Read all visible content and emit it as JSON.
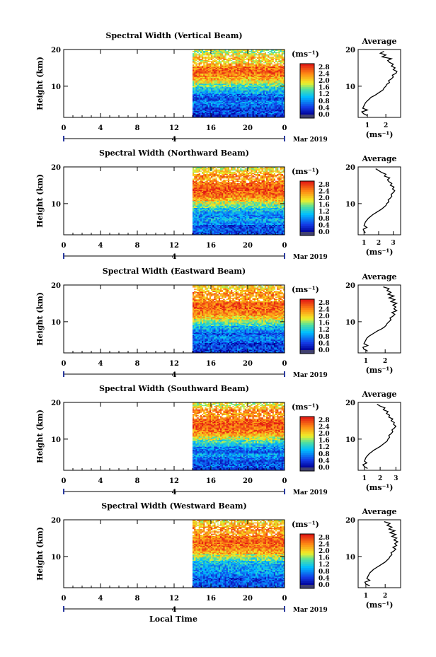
{
  "figure": {
    "xlabel": "Local Time",
    "date_label": "Mar 2019",
    "day_marker": "4"
  },
  "chart_data": [
    {
      "type": "heatmap",
      "title": "Spectral Width (Vertical Beam)",
      "xlabel": "",
      "ylabel": "Height (km)",
      "xlim": [
        0,
        24
      ],
      "ylim": [
        1.5,
        20
      ],
      "xticks": [
        "0",
        "4",
        "8",
        "12",
        "16",
        "20",
        "0"
      ],
      "yticks": [
        "10",
        "20"
      ],
      "data_start_hour": 14,
      "colorbar": {
        "unit": "(ms⁻¹)",
        "levels": [
          "0.0",
          "0.4",
          "0.8",
          "1.2",
          "1.6",
          "2.0",
          "2.4",
          "2.8"
        ],
        "vmin": 0,
        "vmax": 3.0
      },
      "profile_rows": [
        0.3,
        0.5,
        0.4,
        0.6,
        0.8,
        0.5,
        0.7,
        1.0,
        1.2,
        1.5,
        1.9,
        2.2,
        2.4,
        2.6,
        2.5,
        2.3,
        2.0,
        2.2,
        1.9,
        1.7
      ],
      "seed": 11,
      "average": {
        "title": "Average",
        "xlabel": "(ms⁻¹)",
        "xticks": [
          1,
          2
        ],
        "xlim": [
          0.5,
          2.8
        ],
        "height": [
          2,
          2.5,
          3,
          3.5,
          4,
          4.5,
          5,
          5.5,
          6,
          6.5,
          7,
          7.5,
          8,
          8.5,
          9,
          9.5,
          10,
          10.5,
          11,
          11.5,
          12,
          12.5,
          13,
          13.5,
          14,
          14.5,
          15,
          15.5,
          16,
          16.5,
          17,
          17.5,
          18,
          18.5,
          19,
          19.5
        ],
        "value": [
          1.0,
          0.8,
          0.7,
          1.0,
          0.75,
          0.8,
          0.85,
          0.9,
          1.0,
          1.1,
          1.2,
          1.4,
          1.55,
          1.7,
          1.85,
          1.9,
          2.0,
          2.05,
          2.2,
          2.15,
          2.3,
          2.4,
          2.35,
          2.55,
          2.6,
          2.4,
          2.5,
          2.3,
          2.4,
          2.2,
          2.1,
          2.3,
          1.8,
          2.0,
          1.7,
          1.9
        ]
      }
    },
    {
      "type": "heatmap",
      "title": "Spectral Width (Northward Beam)",
      "xlabel": "",
      "ylabel": "Height (km)",
      "xlim": [
        0,
        24
      ],
      "ylim": [
        1.5,
        20
      ],
      "xticks": [
        "0",
        "4",
        "8",
        "12",
        "16",
        "20",
        "0"
      ],
      "yticks": [
        "10",
        "20"
      ],
      "data_start_hour": 14,
      "colorbar": {
        "unit": "(ms⁻¹)",
        "levels": [
          "0.0",
          "0.4",
          "0.8",
          "1.2",
          "1.6",
          "2.0",
          "2.4",
          "2.8"
        ],
        "vmin": 0,
        "vmax": 3.0
      },
      "profile_rows": [
        0.5,
        0.6,
        0.5,
        0.8,
        1.0,
        0.8,
        0.9,
        1.2,
        1.5,
        1.8,
        2.2,
        2.5,
        2.6,
        2.7,
        2.6,
        2.5,
        2.3,
        2.4,
        2.1,
        1.9
      ],
      "seed": 23,
      "average": {
        "title": "Average",
        "xlabel": "(ms⁻¹)",
        "xticks": [
          1,
          2,
          3
        ],
        "xlim": [
          0.6,
          3.5
        ],
        "height": [
          2,
          2.5,
          3,
          3.5,
          4,
          4.5,
          5,
          5.5,
          6,
          6.5,
          7,
          7.5,
          8,
          8.5,
          9,
          9.5,
          10,
          10.5,
          11,
          11.5,
          12,
          12.5,
          13,
          13.5,
          14,
          14.5,
          15,
          15.5,
          16,
          16.5,
          17,
          17.5,
          18,
          18.5,
          19,
          19.5
        ],
        "value": [
          1.1,
          1.0,
          0.95,
          1.2,
          1.0,
          1.05,
          1.1,
          1.2,
          1.3,
          1.45,
          1.6,
          1.8,
          2.0,
          2.2,
          2.35,
          2.5,
          2.55,
          2.7,
          2.65,
          2.8,
          2.9,
          2.85,
          3.0,
          3.1,
          2.95,
          3.05,
          2.8,
          2.9,
          2.7,
          2.6,
          2.75,
          2.4,
          2.5,
          2.2,
          2.0,
          1.8
        ]
      }
    },
    {
      "type": "heatmap",
      "title": "Spectral Width (Eastward Beam)",
      "xlabel": "",
      "ylabel": "Height (km)",
      "xlim": [
        0,
        24
      ],
      "ylim": [
        1.5,
        20
      ],
      "xticks": [
        "0",
        "4",
        "8",
        "12",
        "16",
        "20",
        "0"
      ],
      "yticks": [
        "10",
        "20"
      ],
      "data_start_hour": 14,
      "colorbar": {
        "unit": "(ms⁻¹)",
        "levels": [
          "0.0",
          "0.4",
          "0.8",
          "1.2",
          "1.6",
          "2.0",
          "2.4",
          "2.8"
        ],
        "vmin": 0,
        "vmax": 3.0
      },
      "profile_rows": [
        0.4,
        0.5,
        0.4,
        0.6,
        0.8,
        0.6,
        0.8,
        1.1,
        1.4,
        1.7,
        2.1,
        2.4,
        2.5,
        2.6,
        2.6,
        2.4,
        2.3,
        2.4,
        2.2,
        2.0
      ],
      "seed": 37,
      "average": {
        "title": "Average",
        "xlabel": "(ms⁻¹)",
        "xticks": [
          1,
          2
        ],
        "xlim": [
          0.6,
          2.8
        ],
        "height": [
          2,
          2.5,
          3,
          3.5,
          4,
          4.5,
          5,
          5.5,
          6,
          6.5,
          7,
          7.5,
          8,
          8.5,
          9,
          9.5,
          10,
          10.5,
          11,
          11.5,
          12,
          12.5,
          13,
          13.5,
          14,
          14.5,
          15,
          15.5,
          16,
          16.5,
          17,
          17.5,
          18,
          18.5,
          19,
          19.5
        ],
        "value": [
          1.1,
          0.9,
          0.85,
          1.1,
          0.9,
          0.95,
          1.0,
          1.05,
          1.15,
          1.3,
          1.45,
          1.6,
          1.8,
          1.95,
          2.05,
          2.1,
          2.2,
          2.3,
          2.25,
          2.4,
          2.5,
          2.35,
          2.6,
          2.45,
          2.55,
          2.4,
          2.6,
          2.3,
          2.5,
          2.2,
          2.45,
          2.15,
          2.3,
          2.1,
          2.2,
          1.9
        ]
      }
    },
    {
      "type": "heatmap",
      "title": "Spectral Width (Southward Beam)",
      "xlabel": "",
      "ylabel": "Height (km)",
      "xlim": [
        0,
        24
      ],
      "ylim": [
        1.5,
        20
      ],
      "xticks": [
        "0",
        "4",
        "8",
        "12",
        "16",
        "20",
        "0"
      ],
      "yticks": [
        "10",
        "20"
      ],
      "data_start_hour": 14,
      "colorbar": {
        "unit": "(ms⁻¹)",
        "levels": [
          "0.0",
          "0.4",
          "0.8",
          "1.2",
          "1.6",
          "2.0",
          "2.4",
          "2.8"
        ],
        "vmin": 0,
        "vmax": 3.0
      },
      "profile_rows": [
        0.4,
        0.6,
        0.5,
        0.7,
        0.9,
        0.6,
        0.8,
        1.1,
        1.4,
        1.8,
        2.2,
        2.5,
        2.6,
        2.7,
        2.6,
        2.5,
        2.3,
        2.5,
        2.1,
        1.9
      ],
      "seed": 53,
      "average": {
        "title": "Average",
        "xlabel": "(ms⁻¹)",
        "xticks": [
          1,
          2,
          3
        ],
        "xlim": [
          0.6,
          3.3
        ],
        "height": [
          2,
          2.5,
          3,
          3.5,
          4,
          4.5,
          5,
          5.5,
          6,
          6.5,
          7,
          7.5,
          8,
          8.5,
          9,
          9.5,
          10,
          10.5,
          11,
          11.5,
          12,
          12.5,
          13,
          13.5,
          14,
          14.5,
          15,
          15.5,
          16,
          16.5,
          17,
          17.5,
          18,
          18.5,
          19,
          19.5
        ],
        "value": [
          1.2,
          1.0,
          0.9,
          1.15,
          1.0,
          1.05,
          1.1,
          1.2,
          1.3,
          1.45,
          1.6,
          1.8,
          2.0,
          2.15,
          2.3,
          2.45,
          2.5,
          2.6,
          2.55,
          2.7,
          2.8,
          2.75,
          2.9,
          3.0,
          2.85,
          2.9,
          2.7,
          2.8,
          2.55,
          2.6,
          2.4,
          2.5,
          2.2,
          2.3,
          2.0,
          1.8
        ]
      }
    },
    {
      "type": "heatmap",
      "title": "Spectral Width (Westward Beam)",
      "xlabel": "",
      "ylabel": "Height (km)",
      "xlim": [
        0,
        24
      ],
      "ylim": [
        1.5,
        20
      ],
      "xticks": [
        "0",
        "4",
        "8",
        "12",
        "16",
        "20",
        "0"
      ],
      "yticks": [
        "10",
        "20"
      ],
      "data_start_hour": 14,
      "colorbar": {
        "unit": "(ms⁻¹)",
        "levels": [
          "0.0",
          "0.4",
          "0.8",
          "1.2",
          "1.6",
          "2.0",
          "2.4",
          "2.8"
        ],
        "vmin": 0,
        "vmax": 3.0
      },
      "profile_rows": [
        0.5,
        0.6,
        0.5,
        0.7,
        0.9,
        0.9,
        1.0,
        1.2,
        1.5,
        1.8,
        2.2,
        2.4,
        2.5,
        2.6,
        2.5,
        2.4,
        2.3,
        2.4,
        2.2,
        2.0
      ],
      "seed": 71,
      "average": {
        "title": "Average",
        "xlabel": "(ms⁻¹)",
        "xticks": [
          1,
          2
        ],
        "xlim": [
          0.6,
          2.8
        ],
        "height": [
          2,
          2.5,
          3,
          3.5,
          4,
          4.5,
          5,
          5.5,
          6,
          6.5,
          7,
          7.5,
          8,
          8.5,
          9,
          9.5,
          10,
          10.5,
          11,
          11.5,
          12,
          12.5,
          13,
          13.5,
          14,
          14.5,
          15,
          15.5,
          16,
          16.5,
          17,
          17.5,
          18,
          18.5,
          19,
          19.5
        ],
        "value": [
          1.2,
          1.0,
          0.95,
          1.2,
          1.05,
          1.1,
          1.15,
          1.2,
          1.3,
          1.4,
          1.55,
          1.7,
          1.85,
          2.0,
          2.1,
          2.2,
          2.25,
          2.35,
          2.3,
          2.45,
          2.55,
          2.4,
          2.6,
          2.5,
          2.65,
          2.45,
          2.6,
          2.35,
          2.55,
          2.25,
          2.5,
          2.2,
          2.35,
          2.1,
          2.25,
          1.95
        ]
      }
    }
  ]
}
